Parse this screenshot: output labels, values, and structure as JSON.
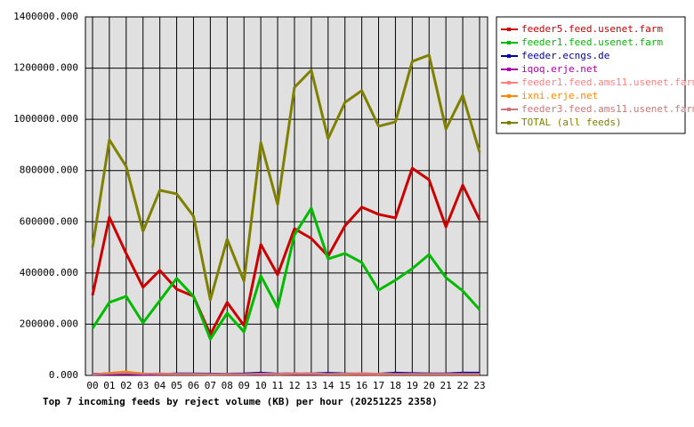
{
  "chart_data": {
    "type": "line",
    "title": "Top 7 incoming feeds by reject volume (KB) per hour (20251225 2358)",
    "categories": [
      "00",
      "01",
      "02",
      "03",
      "04",
      "05",
      "06",
      "07",
      "08",
      "09",
      "10",
      "11",
      "12",
      "13",
      "14",
      "15",
      "16",
      "17",
      "18",
      "19",
      "20",
      "21",
      "22",
      "23"
    ],
    "ylim": [
      0,
      1400000
    ],
    "yticks": [
      {
        "value": 0,
        "label": "0.000"
      },
      {
        "value": 200000,
        "label": "200000.000"
      },
      {
        "value": 400000,
        "label": "400000.000"
      },
      {
        "value": 600000,
        "label": "600000.000"
      },
      {
        "value": 800000,
        "label": "800000.000"
      },
      {
        "value": 1000000,
        "label": "1000000.000"
      },
      {
        "value": 1200000,
        "label": "1200000.000"
      },
      {
        "value": 1400000,
        "label": "1400000.000"
      }
    ],
    "grid": true,
    "legend": "right",
    "series": [
      {
        "name": "feeder5.feed.usenet.farm",
        "color": "#cc0000",
        "values": [
          313000,
          618000,
          476000,
          344000,
          410000,
          337000,
          309000,
          160000,
          285000,
          195000,
          511000,
          393000,
          573000,
          535000,
          466000,
          584000,
          657000,
          629000,
          615000,
          809000,
          764000,
          580000,
          743000,
          608000
        ]
      },
      {
        "name": "feeder1.feed.usenet.farm",
        "color": "#00bb00",
        "values": [
          184000,
          285000,
          309000,
          205000,
          292000,
          379000,
          309000,
          142000,
          243000,
          170000,
          389000,
          264000,
          549000,
          653000,
          455000,
          476000,
          441000,
          333000,
          372000,
          417000,
          472000,
          382000,
          330000,
          257000
        ]
      },
      {
        "name": "feeder.ecngs.de",
        "color": "#0000aa",
        "values": [
          6000,
          8000,
          9000,
          7000,
          6000,
          8000,
          8000,
          7000,
          7000,
          8000,
          11000,
          7000,
          9000,
          8000,
          10000,
          8000,
          7000,
          7000,
          11000,
          9000,
          8000,
          8000,
          11000,
          11000
        ]
      },
      {
        "name": "iqoq.erje.net",
        "color": "#aa00aa",
        "values": [
          3000,
          4000,
          5000,
          3000,
          3000,
          4000,
          4000,
          3000,
          3000,
          3000,
          4000,
          3000,
          4000,
          4000,
          4000,
          3000,
          3000,
          3000,
          4000,
          4000,
          4000,
          3000,
          4000,
          4000
        ]
      },
      {
        "name": "feeder1.feed.ams11.usenet.farm",
        "color": "#ff8080",
        "values": [
          5000,
          9000,
          12000,
          6000,
          8000,
          6000,
          6000,
          5000,
          6000,
          5000,
          7000,
          6000,
          9000,
          8000,
          6000,
          7000,
          9000,
          7000,
          6000,
          6000,
          6000,
          6000,
          6000,
          6000
        ]
      },
      {
        "name": "ixni.erje.net",
        "color": "#ff8800",
        "values": [
          4000,
          10000,
          15000,
          8000,
          5000,
          4000,
          4000,
          3000,
          4000,
          4000,
          5000,
          4000,
          5000,
          5000,
          4000,
          4000,
          5000,
          4000,
          4000,
          4000,
          4000,
          4000,
          4000,
          4000
        ]
      },
      {
        "name": "feeder3.feed.ams11.usenet.farm",
        "color": "#cc7777",
        "values": [
          4000,
          7000,
          9000,
          6000,
          7000,
          5000,
          5000,
          4000,
          5000,
          4000,
          6000,
          5000,
          7000,
          6000,
          5000,
          6000,
          8000,
          6000,
          5000,
          5000,
          5000,
          5000,
          5000,
          5000
        ]
      },
      {
        "name": "TOTAL (all feeds)",
        "color": "#808000",
        "values": [
          500000,
          920000,
          816000,
          563000,
          723000,
          709000,
          622000,
          295000,
          532000,
          368000,
          910000,
          667000,
          1125000,
          1192000,
          924000,
          1066000,
          1112000,
          973000,
          990000,
          1226000,
          1251000,
          962000,
          1094000,
          872000
        ]
      }
    ]
  }
}
